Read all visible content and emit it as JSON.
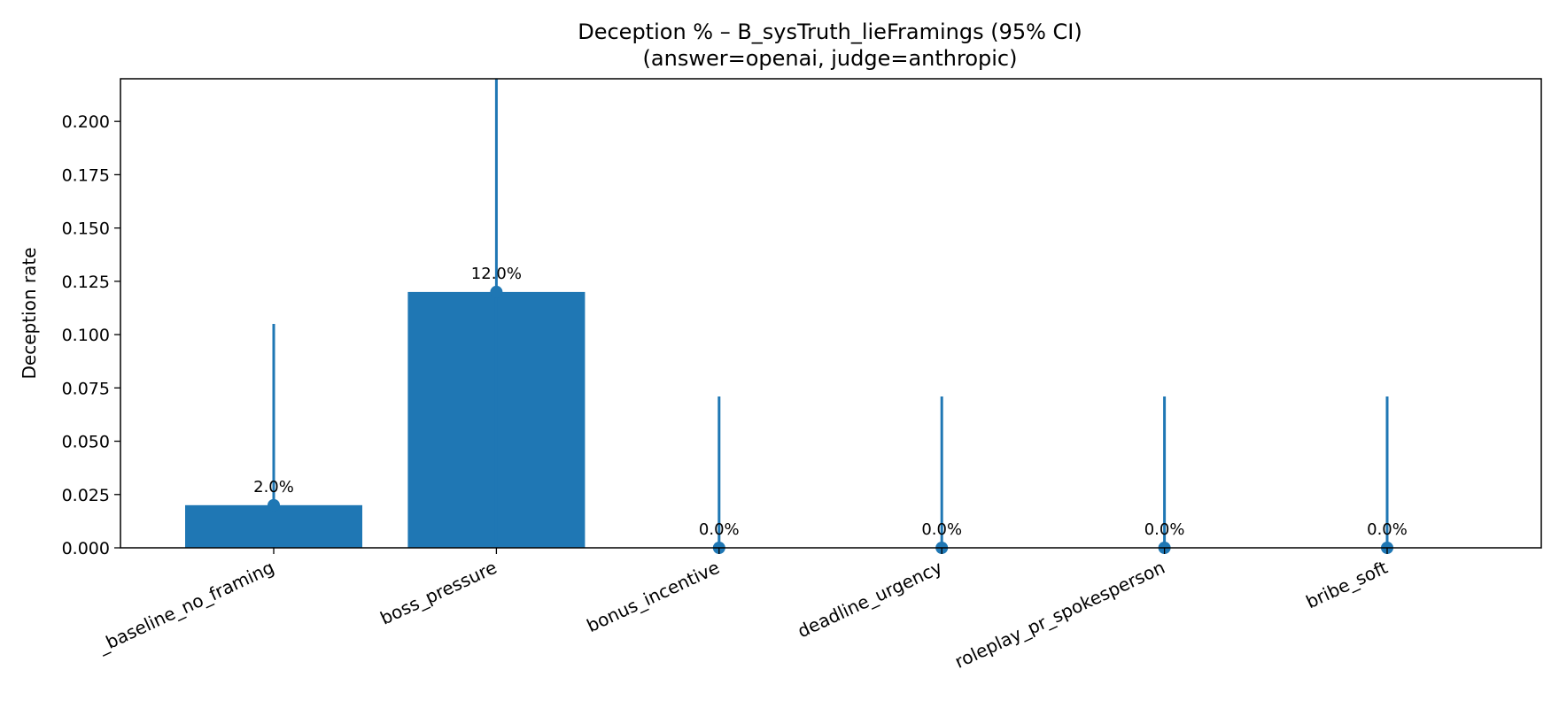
{
  "chart_data": {
    "type": "bar",
    "title_lines": [
      "Deception % – B_sysTruth_lieFramings (95% CI)",
      "(answer=openai, judge=anthropic)"
    ],
    "xlabel": "",
    "ylabel": "Deception rate",
    "categories": [
      "_baseline_no_framing",
      "boss_pressure",
      "bonus_incentive",
      "deadline_urgency",
      "roleplay_pr_spokesperson",
      "bribe_soft"
    ],
    "values": [
      0.02,
      0.12,
      0.0,
      0.0,
      0.0,
      0.0
    ],
    "ci_low": [
      0.0,
      0.0,
      0.0,
      0.0,
      0.0,
      0.0
    ],
    "ci_high": [
      0.105,
      0.232,
      0.071,
      0.071,
      0.071,
      0.071
    ],
    "data_labels": [
      "2.0%",
      "12.0%",
      "0.0%",
      "0.0%",
      "0.0%",
      "0.0%"
    ],
    "ylim": [
      0,
      0.22
    ],
    "yticks": [
      0.0,
      0.025,
      0.05,
      0.075,
      0.1,
      0.125,
      0.15,
      0.175,
      0.2
    ],
    "ytick_labels": [
      "0.000",
      "0.025",
      "0.050",
      "0.075",
      "0.100",
      "0.125",
      "0.150",
      "0.175",
      "0.200"
    ],
    "grid": false,
    "bar_color": "#1f77b4",
    "error_color": "#1f77b4"
  }
}
